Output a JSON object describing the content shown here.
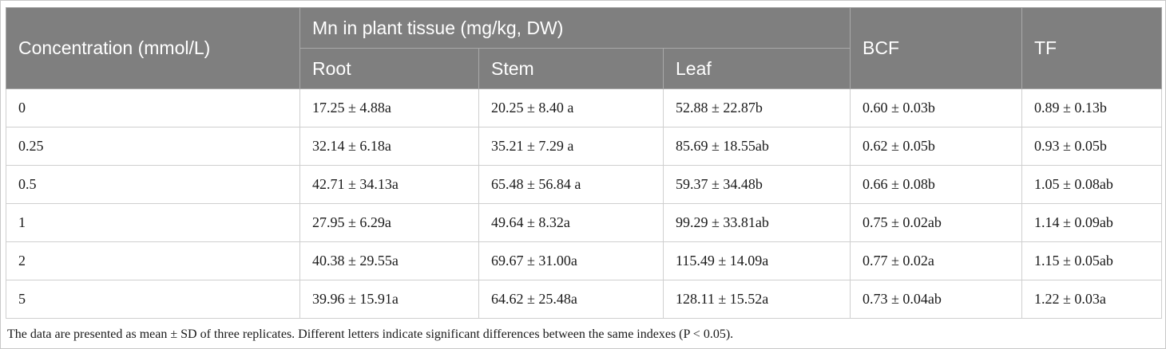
{
  "table": {
    "header": {
      "concentration": "Concentration (mmol/L)",
      "mn_group": "Mn in plant tissue (mg/kg, DW)",
      "root": "Root",
      "stem": "Stem",
      "leaf": "Leaf",
      "bcf": "BCF",
      "tf": "TF"
    },
    "rows": [
      [
        "0",
        "17.25 ± 4.88a",
        "20.25 ± 8.40 a",
        "52.88 ± 22.87b",
        "0.60 ± 0.03b",
        "0.89 ± 0.13b"
      ],
      [
        "0.25",
        "32.14 ± 6.18a",
        "35.21 ± 7.29 a",
        "85.69 ± 18.55ab",
        "0.62 ± 0.05b",
        "0.93 ± 0.05b"
      ],
      [
        "0.5",
        "42.71 ± 34.13a",
        "65.48 ± 56.84 a",
        "59.37 ± 34.48b",
        "0.66 ± 0.08b",
        "1.05 ± 0.08ab"
      ],
      [
        "1",
        "27.95 ± 6.29a",
        "49.64 ± 8.32a",
        "99.29 ± 33.81ab",
        "0.75 ± 0.02ab",
        "1.14 ± 0.09ab"
      ],
      [
        "2",
        "40.38 ± 29.55a",
        "69.67 ± 31.00a",
        "115.49 ± 14.09a",
        "0.77 ± 0.02a",
        "1.15 ± 0.05ab"
      ],
      [
        "5",
        "39.96 ± 15.91a",
        "64.62 ± 25.48a",
        "128.11 ± 15.52a",
        "0.73 ± 0.04ab",
        "1.22 ± 0.03a"
      ]
    ]
  },
  "footnote": "The data are presented as mean ± SD of three replicates. Different letters indicate significant differences between the same indexes (P < 0.05)."
}
